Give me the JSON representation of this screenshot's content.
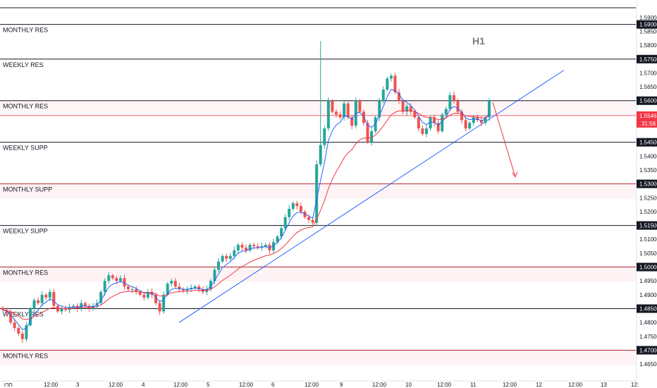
{
  "chart_data": {
    "type": "candlestick",
    "timeframe": "H1",
    "x_ticks": [
      "תרו",
      "12:00",
      "3",
      "12:00",
      "4",
      "12:00",
      "5",
      "12:00",
      "6",
      "12:00",
      "9",
      "12:00",
      "10",
      "12:00",
      "11",
      "12:00",
      "12",
      "12:00",
      "13",
      "12:"
    ],
    "y_ticks": [
      "1.59000",
      "1.58500",
      "1.58000",
      "1.57500",
      "1.57000",
      "1.56500",
      "1.56000",
      "1.55500",
      "1.54500",
      "1.54000",
      "1.53500",
      "1.53000",
      "1.52500",
      "1.52000",
      "1.51500",
      "1.51000",
      "1.50500",
      "1.50000",
      "1.49500",
      "1.49000",
      "1.48500",
      "1.48000",
      "1.47500",
      "1.47000",
      "1.46500"
    ],
    "ylim": [
      1.4635,
      1.5925
    ],
    "current_price": "1.55462",
    "countdown": "31:58",
    "levels": [
      {
        "price": 1.5875,
        "label": "MONTHLY RES",
        "color": "#131722",
        "badge": "1.59000",
        "zone": false
      },
      {
        "price": 1.575,
        "label": "WEEKLY RES",
        "color": "#131722",
        "badge": "1.57500",
        "zone": false
      },
      {
        "price": 1.56,
        "label": "MONTHLY RES",
        "color": "#131722",
        "badge": "1.56000",
        "zone": true
      },
      {
        "price": 1.545,
        "label": "WEEKLY SUPP",
        "color": "#131722",
        "badge": "1.54500",
        "zone": false
      },
      {
        "price": 1.53,
        "label": "MONTHLY SUPP",
        "color": "#b22833",
        "badge": "1.53000",
        "zone": true
      },
      {
        "price": 1.515,
        "label": "WEEKLY SUPP",
        "color": "#131722",
        "badge": "1.51500",
        "zone": false
      },
      {
        "price": 1.5,
        "label": "MONTHLY RES",
        "color": "#b22833",
        "badge": "1.50000",
        "zone": true
      },
      {
        "price": 1.485,
        "label": "WEEKLY RES",
        "color": "#131722",
        "badge": "1.48500",
        "zone": false
      },
      {
        "price": 1.47,
        "label": "MONTHLY RES",
        "color": "#b22833",
        "badge": "1.47000",
        "zone": true
      }
    ],
    "trendline": {
      "from": {
        "bar": 0.0,
        "price": 1.48
      },
      "to": {
        "bar": 1.0,
        "price": 1.571
      }
    },
    "projection": {
      "to_price": 1.5325
    },
    "colors": {
      "up": "#26a69a",
      "down": "#ef5350",
      "ma_fast": "#2962ff",
      "ma_slow": "#f23645",
      "trend": "#2962ff",
      "black": "#131722"
    },
    "series_close_path": [
      1.4845,
      1.4835,
      1.48,
      1.478,
      1.476,
      1.474,
      1.479,
      1.485,
      1.488,
      1.487,
      1.49,
      1.489,
      1.491,
      1.486,
      1.484,
      1.485,
      1.4845,
      1.4855,
      1.486,
      1.485,
      1.487,
      1.486,
      1.485,
      1.486,
      1.487,
      1.491,
      1.495,
      1.497,
      1.496,
      1.495,
      1.496,
      1.493,
      1.492,
      1.492,
      1.491,
      1.49,
      1.489,
      1.491,
      1.49,
      1.487,
      1.484,
      1.49,
      1.494,
      1.495,
      1.493,
      1.492,
      1.4915,
      1.492,
      1.4925,
      1.493,
      1.492,
      1.491,
      1.492,
      1.495,
      1.499,
      1.502,
      1.504,
      1.503,
      1.504,
      1.506,
      1.508,
      1.507,
      1.506,
      1.508,
      1.5075,
      1.507,
      1.5075,
      1.508,
      1.506,
      1.509,
      1.511,
      1.514,
      1.518,
      1.521,
      1.523,
      1.522,
      1.52,
      1.518,
      1.517,
      1.516,
      1.537,
      1.544,
      1.55,
      1.56,
      1.556,
      1.555,
      1.554,
      1.559,
      1.554,
      1.551,
      1.56,
      1.556,
      1.552,
      1.545,
      1.549,
      1.554,
      1.56,
      1.564,
      1.568,
      1.569,
      1.563,
      1.56,
      1.556,
      1.558,
      1.556,
      1.554,
      1.55,
      1.548,
      1.55,
      1.554,
      1.552,
      1.549,
      1.555,
      1.557,
      1.562,
      1.56,
      1.556,
      1.553,
      1.55,
      1.552,
      1.554,
      1.553,
      1.552,
      1.554,
      1.56
    ]
  }
}
